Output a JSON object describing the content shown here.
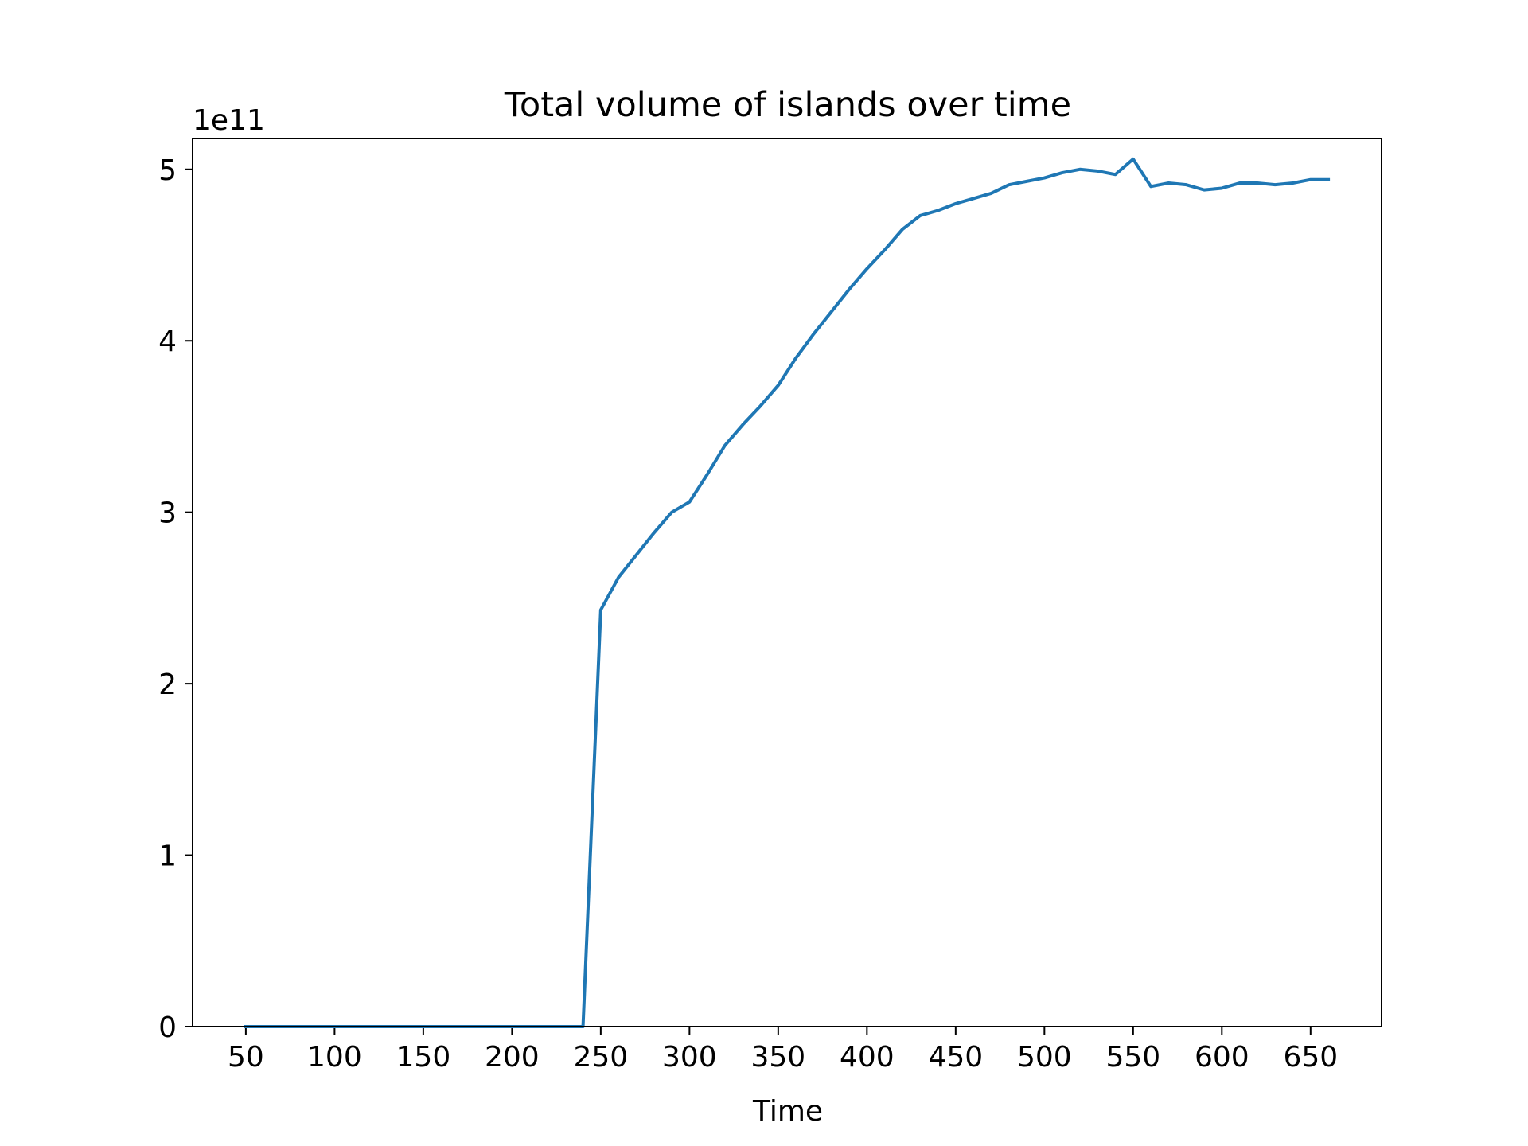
{
  "chart_data": {
    "type": "line",
    "title": "Total volume of islands over time",
    "xlabel": "Time",
    "ylabel": "",
    "y_offset_label": "1e11",
    "xlim": [
      20,
      690
    ],
    "ylim": [
      0,
      5.18
    ],
    "xticks": [
      50,
      100,
      150,
      200,
      250,
      300,
      350,
      400,
      450,
      500,
      550,
      600,
      650
    ],
    "yticks": [
      0,
      1,
      2,
      3,
      4,
      5
    ],
    "grid": false,
    "series_color": "#1f77b4",
    "x": [
      50,
      60,
      70,
      80,
      90,
      100,
      110,
      120,
      130,
      140,
      150,
      160,
      170,
      180,
      190,
      200,
      210,
      220,
      230,
      240,
      250,
      260,
      270,
      280,
      290,
      300,
      310,
      320,
      330,
      340,
      350,
      360,
      370,
      380,
      390,
      400,
      410,
      420,
      430,
      440,
      450,
      460,
      470,
      480,
      490,
      500,
      510,
      520,
      530,
      540,
      550,
      560,
      570,
      580,
      590,
      600,
      610,
      620,
      630,
      640,
      650,
      660
    ],
    "values": [
      0,
      0,
      0,
      0,
      0,
      0,
      0,
      0,
      0,
      0,
      0,
      0,
      0,
      0,
      0,
      0,
      0,
      0,
      0,
      0,
      2.43,
      2.62,
      2.75,
      2.88,
      3.0,
      3.06,
      3.22,
      3.39,
      3.51,
      3.62,
      3.74,
      3.9,
      4.04,
      4.17,
      4.3,
      4.42,
      4.53,
      4.65,
      4.73,
      4.76,
      4.8,
      4.83,
      4.86,
      4.91,
      4.93,
      4.95,
      4.98,
      5.0,
      4.99,
      4.97,
      5.06,
      4.9,
      4.92,
      4.91,
      4.88,
      4.89,
      4.92,
      4.92,
      4.91,
      4.92,
      4.94,
      4.94
    ]
  }
}
